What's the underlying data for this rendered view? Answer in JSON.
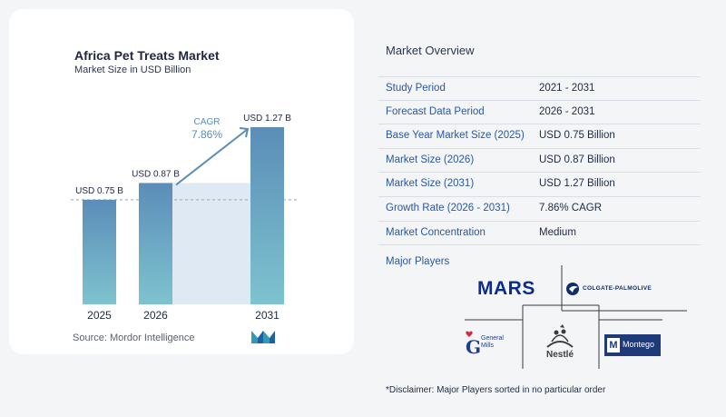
{
  "chart_data": {
    "type": "bar",
    "title": "Africa Pet Treats Market",
    "subtitle": "Market Size in USD Billion",
    "categories": [
      "2025",
      "2026",
      "2031"
    ],
    "values": [
      0.75,
      0.87,
      1.27
    ],
    "value_labels": [
      "USD 0.75 B",
      "USD 0.87 B",
      "USD 1.27 B"
    ],
    "cagr_label": "CAGR",
    "cagr_value": "7.86%",
    "ylim": [
      0,
      1.27
    ],
    "grid": false,
    "reference_line_value": 0.75,
    "colors": {
      "bar_top": "#5b8db8",
      "bar_bottom": "#7ec3cf",
      "shade": "#dfe9f3",
      "arrow": "#5b8db8",
      "cagr_text": "#5b8db8",
      "dashed": "#9aa3b2"
    }
  },
  "source": "Source:  Mordor Intelligence",
  "overview": {
    "title": "Market Overview",
    "rows": [
      {
        "label": "Study Period",
        "value": "2021 - 2031"
      },
      {
        "label": "Forecast Data Period",
        "value": "2026 - 2031"
      },
      {
        "label": "Base Year Market Size (2025)",
        "value": "USD 0.75 Billion"
      },
      {
        "label": "Market Size (2026)",
        "value": "USD 0.87 Billion"
      },
      {
        "label": "Market Size (2031)",
        "value": "USD 1.27 Billion"
      },
      {
        "label": "Growth Rate (2026 - 2031)",
        "value": "7.86% CAGR"
      },
      {
        "label": "Market Concentration",
        "value": "Medium"
      }
    ]
  },
  "players": {
    "title": "Major Players",
    "logos": {
      "mars": "MARS",
      "colgate": "COLGATE-PALMOLIVE",
      "general_mills_line1": "General",
      "general_mills_line2": "Mills",
      "nestle": "Nestlé",
      "montego": "Montego"
    }
  },
  "disclaimer": "*Disclaimer: Major Players sorted in no particular order"
}
